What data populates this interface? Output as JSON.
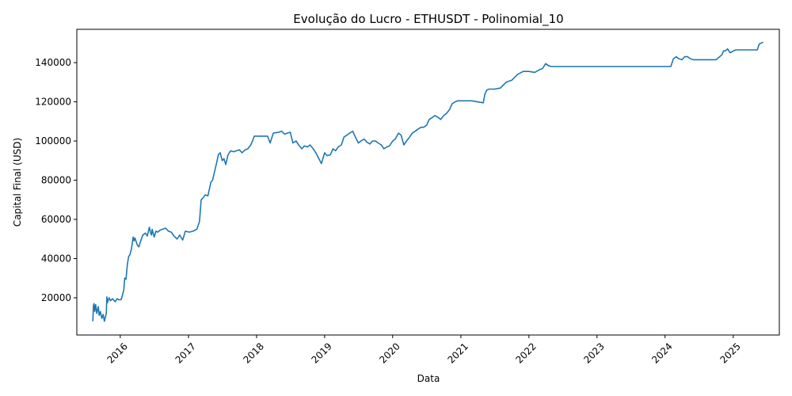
{
  "chart_data": {
    "type": "line",
    "title": "Evolução do Lucro - ETHUSDT - Polinomial_10",
    "xlabel": "Data",
    "ylabel": "Capital Final (USD)",
    "x_ticks": [
      "2016",
      "2017",
      "2018",
      "2019",
      "2020",
      "2021",
      "2022",
      "2023",
      "2024",
      "2025"
    ],
    "y_ticks": [
      "20000",
      "40000",
      "60000",
      "80000",
      "100000",
      "120000",
      "140000"
    ],
    "xlim": [
      "2015-05-13",
      "2025-09-05"
    ],
    "ylim": [
      1000,
      157000
    ],
    "grid": false,
    "color": "#1f77b4",
    "series": [
      {
        "x": [
          "2015-08-07",
          "2015-08-10",
          "2015-08-13",
          "2015-08-17",
          "2015-08-22",
          "2015-08-28",
          "2015-09-05",
          "2015-09-10",
          "2015-09-16",
          "2015-09-24",
          "2015-10-01",
          "2015-10-08",
          "2015-10-13",
          "2015-10-18",
          "2015-10-21",
          "2015-10-24",
          "2015-11-02",
          "2015-11-10",
          "2015-11-20",
          "2015-12-05",
          "2015-12-15",
          "2015-12-25",
          "2016-01-05",
          "2016-01-12",
          "2016-01-20",
          "2016-01-25",
          "2016-02-01",
          "2016-02-08",
          "2016-02-15",
          "2016-02-22",
          "2016-03-01",
          "2016-03-10",
          "2016-03-15",
          "2016-03-20",
          "2016-04-01",
          "2016-04-10",
          "2016-04-20",
          "2016-05-01",
          "2016-05-15",
          "2016-05-25",
          "2016-06-05",
          "2016-06-12",
          "2016-06-17",
          "2016-06-20",
          "2016-07-01",
          "2016-07-10",
          "2016-07-20",
          "2016-08-01",
          "2016-08-15",
          "2016-09-01",
          "2016-09-15",
          "2016-10-01",
          "2016-10-15",
          "2016-11-01",
          "2016-11-15",
          "2016-12-01",
          "2016-12-15",
          "2017-01-05",
          "2017-01-25",
          "2017-02-15",
          "2017-03-01",
          "2017-03-10",
          "2017-03-20",
          "2017-04-01",
          "2017-04-15",
          "2017-05-01",
          "2017-05-10",
          "2017-05-20",
          "2017-06-01",
          "2017-06-10",
          "2017-06-20",
          "2017-07-01",
          "2017-07-10",
          "2017-07-20",
          "2017-08-01",
          "2017-08-15",
          "2017-09-01",
          "2017-09-15",
          "2017-10-01",
          "2017-10-15",
          "2017-11-01",
          "2017-11-15",
          "2017-12-01",
          "2017-12-10",
          "2017-12-20",
          "2018-01-01",
          "2018-02-01",
          "2018-03-01",
          "2018-03-15",
          "2018-04-01",
          "2018-05-01",
          "2018-05-15",
          "2018-06-01",
          "2018-06-15",
          "2018-07-01",
          "2018-07-15",
          "2018-08-01",
          "2018-08-15",
          "2018-09-01",
          "2018-09-15",
          "2018-10-01",
          "2018-10-15",
          "2018-11-01",
          "2018-11-15",
          "2018-12-01",
          "2018-12-15",
          "2019-01-01",
          "2019-01-15",
          "2019-02-01",
          "2019-02-15",
          "2019-03-01",
          "2019-03-15",
          "2019-04-01",
          "2019-04-15",
          "2019-05-01",
          "2019-05-15",
          "2019-06-01",
          "2019-06-15",
          "2019-07-01",
          "2019-07-15",
          "2019-08-01",
          "2019-08-15",
          "2019-09-01",
          "2019-09-15",
          "2019-10-01",
          "2019-10-15",
          "2019-11-01",
          "2019-11-15",
          "2019-12-01",
          "2019-12-15",
          "2020-01-01",
          "2020-01-15",
          "2020-02-01",
          "2020-02-15",
          "2020-03-01",
          "2020-03-15",
          "2020-04-01",
          "2020-04-15",
          "2020-05-01",
          "2020-05-15",
          "2020-06-01",
          "2020-06-15",
          "2020-07-01",
          "2020-07-15",
          "2020-08-01",
          "2020-08-15",
          "2020-09-01",
          "2020-09-15",
          "2020-10-01",
          "2020-10-15",
          "2020-11-01",
          "2020-11-15",
          "2020-12-01",
          "2020-12-15",
          "2021-01-01",
          "2021-02-01",
          "2021-03-01",
          "2021-04-01",
          "2021-05-01",
          "2021-05-10",
          "2021-05-20",
          "2021-06-01",
          "2021-07-01",
          "2021-08-01",
          "2021-09-01",
          "2021-10-01",
          "2021-11-01",
          "2021-12-01",
          "2022-01-01",
          "2022-02-01",
          "2022-03-01",
          "2022-03-15",
          "2022-04-01",
          "2022-04-15",
          "2022-05-01",
          "2022-06-01",
          "2023-01-01",
          "2023-06-01",
          "2024-01-01",
          "2024-02-01",
          "2024-02-15",
          "2024-03-01",
          "2024-03-15",
          "2024-04-01",
          "2024-04-15",
          "2024-05-01",
          "2024-05-15",
          "2024-06-01",
          "2024-06-15",
          "2024-07-01",
          "2024-07-15",
          "2024-08-01",
          "2024-09-01",
          "2024-10-01",
          "2024-11-01",
          "2024-11-10",
          "2024-11-20",
          "2024-12-01",
          "2024-12-15",
          "2025-01-01",
          "2025-01-15",
          "2025-02-01",
          "2025-02-15",
          "2025-03-01",
          "2025-04-01",
          "2025-05-01",
          "2025-05-10",
          "2025-05-20",
          "2025-06-01",
          "2025-06-10"
        ],
        "y": [
          8000,
          16000,
          17000,
          13000,
          16500,
          12000,
          15500,
          11000,
          13000,
          9500,
          11500,
          8000,
          10000,
          12000,
          20500,
          17500,
          20000,
          18500,
          19500,
          18000,
          19500,
          19000,
          19000,
          21000,
          24000,
          30000,
          29500,
          37000,
          41000,
          42000,
          45000,
          51000,
          49000,
          50500,
          47000,
          46000,
          49000,
          52000,
          53000,
          51500,
          56000,
          53000,
          52000,
          55000,
          51000,
          54000,
          53500,
          54500,
          55000,
          55500,
          54000,
          53500,
          51500,
          50000,
          52000,
          49500,
          54000,
          53500,
          54000,
          55000,
          59000,
          70000,
          71000,
          72500,
          72000,
          79000,
          80000,
          84000,
          89000,
          93000,
          94000,
          90000,
          91000,
          88000,
          93000,
          95000,
          94500,
          95000,
          95500,
          94000,
          95500,
          96000,
          98000,
          100000,
          102500,
          102500,
          102500,
          102500,
          99000,
          104000,
          104500,
          105000,
          103500,
          104000,
          104500,
          99000,
          100000,
          98000,
          96000,
          97500,
          97000,
          98000,
          96000,
          94000,
          91000,
          88500,
          94000,
          92500,
          93000,
          96000,
          95000,
          97000,
          98000,
          102000,
          103000,
          104000,
          105000,
          102000,
          99000,
          100000,
          101000,
          99500,
          98500,
          100000,
          100000,
          99000,
          98000,
          96000,
          97000,
          97500,
          100000,
          101000,
          104000,
          103000,
          98000,
          100000,
          102000,
          104000,
          105000,
          106000,
          107000,
          107000,
          108000,
          111000,
          112000,
          113000,
          112000,
          111000,
          113000,
          114000,
          116000,
          119000,
          120000,
          120500,
          120500,
          120500,
          120500,
          120000,
          119500,
          124000,
          126000,
          126500,
          126500,
          127000,
          130000,
          131000,
          134000,
          135500,
          135500,
          135000,
          136500,
          137000,
          139500,
          138500,
          138000,
          138000,
          138000,
          138000,
          138000,
          138000,
          142000,
          143000,
          142000,
          141500,
          143000,
          143000,
          142000,
          141500,
          141500,
          141500,
          141500,
          141500,
          141500,
          141500,
          144000,
          146000,
          146000,
          147000,
          145000,
          146000,
          146500,
          146500,
          146500,
          146500,
          146500,
          146500,
          146500,
          149500,
          150000,
          150500
        ]
      }
    ]
  }
}
